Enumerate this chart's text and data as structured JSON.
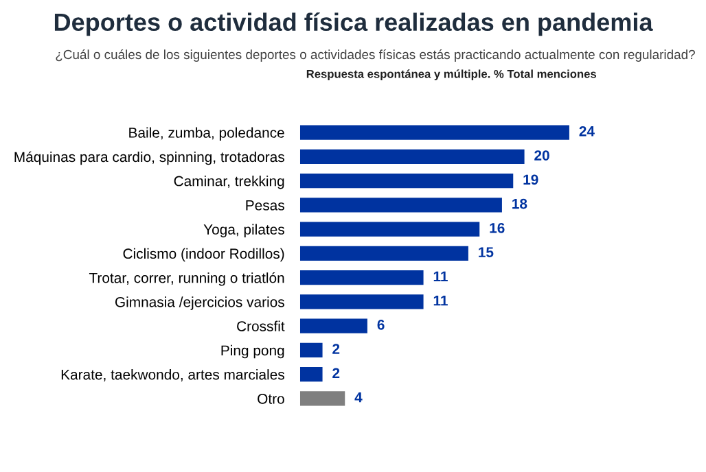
{
  "chart_data": {
    "type": "bar",
    "orientation": "horizontal",
    "title": "Deportes o actividad física realizadas en pandemia",
    "subtitle": "¿Cuál o cuáles de los siguientes deportes o actividades físicas estás practicando actualmente con regularidad?",
    "annotations": [
      "Respuesta espontánea y múltiple. % Total menciones"
    ],
    "categories": [
      "Baile, zumba, poledance",
      "Máquinas para cardio, spinning, trotadoras",
      "Caminar, trekking",
      "Pesas",
      "Yoga, pilates",
      "Ciclismo (indoor Rodillos)",
      "Trotar, correr, running o triatlón",
      "Gimnasia /ejercicios varios",
      "Crossfit",
      "Ping pong",
      "Karate, taekwondo, artes marciales",
      "Otro"
    ],
    "values": [
      24,
      20,
      19,
      18,
      16,
      15,
      11,
      11,
      6,
      2,
      2,
      4
    ],
    "colors": [
      "#0033a0",
      "#0033a0",
      "#0033a0",
      "#0033a0",
      "#0033a0",
      "#0033a0",
      "#0033a0",
      "#0033a0",
      "#0033a0",
      "#0033a0",
      "#0033a0",
      "#7f7f7f"
    ],
    "data_labels": true,
    "grid": false,
    "legend": false
  }
}
